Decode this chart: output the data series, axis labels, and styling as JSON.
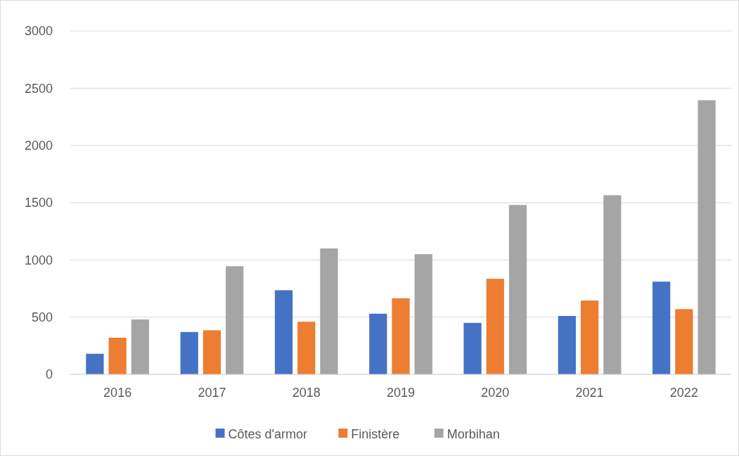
{
  "chart_data": {
    "type": "bar",
    "categories": [
      "2016",
      "2017",
      "2018",
      "2019",
      "2020",
      "2021",
      "2022"
    ],
    "series": [
      {
        "name": "Côtes d'armor",
        "color": "#4472c4",
        "values": [
          180,
          370,
          735,
          530,
          450,
          510,
          810
        ]
      },
      {
        "name": "Finistère",
        "color": "#ed7d31",
        "values": [
          320,
          385,
          460,
          665,
          835,
          645,
          570
        ]
      },
      {
        "name": "Morbihan",
        "color": "#a5a5a5",
        "values": [
          480,
          945,
          1100,
          1050,
          1480,
          1565,
          2395
        ]
      }
    ],
    "ylim": [
      0,
      3000
    ],
    "yticks": [
      0,
      500,
      1000,
      1500,
      2000,
      2500,
      3000
    ],
    "grid": "y",
    "legend": "bottom"
  }
}
